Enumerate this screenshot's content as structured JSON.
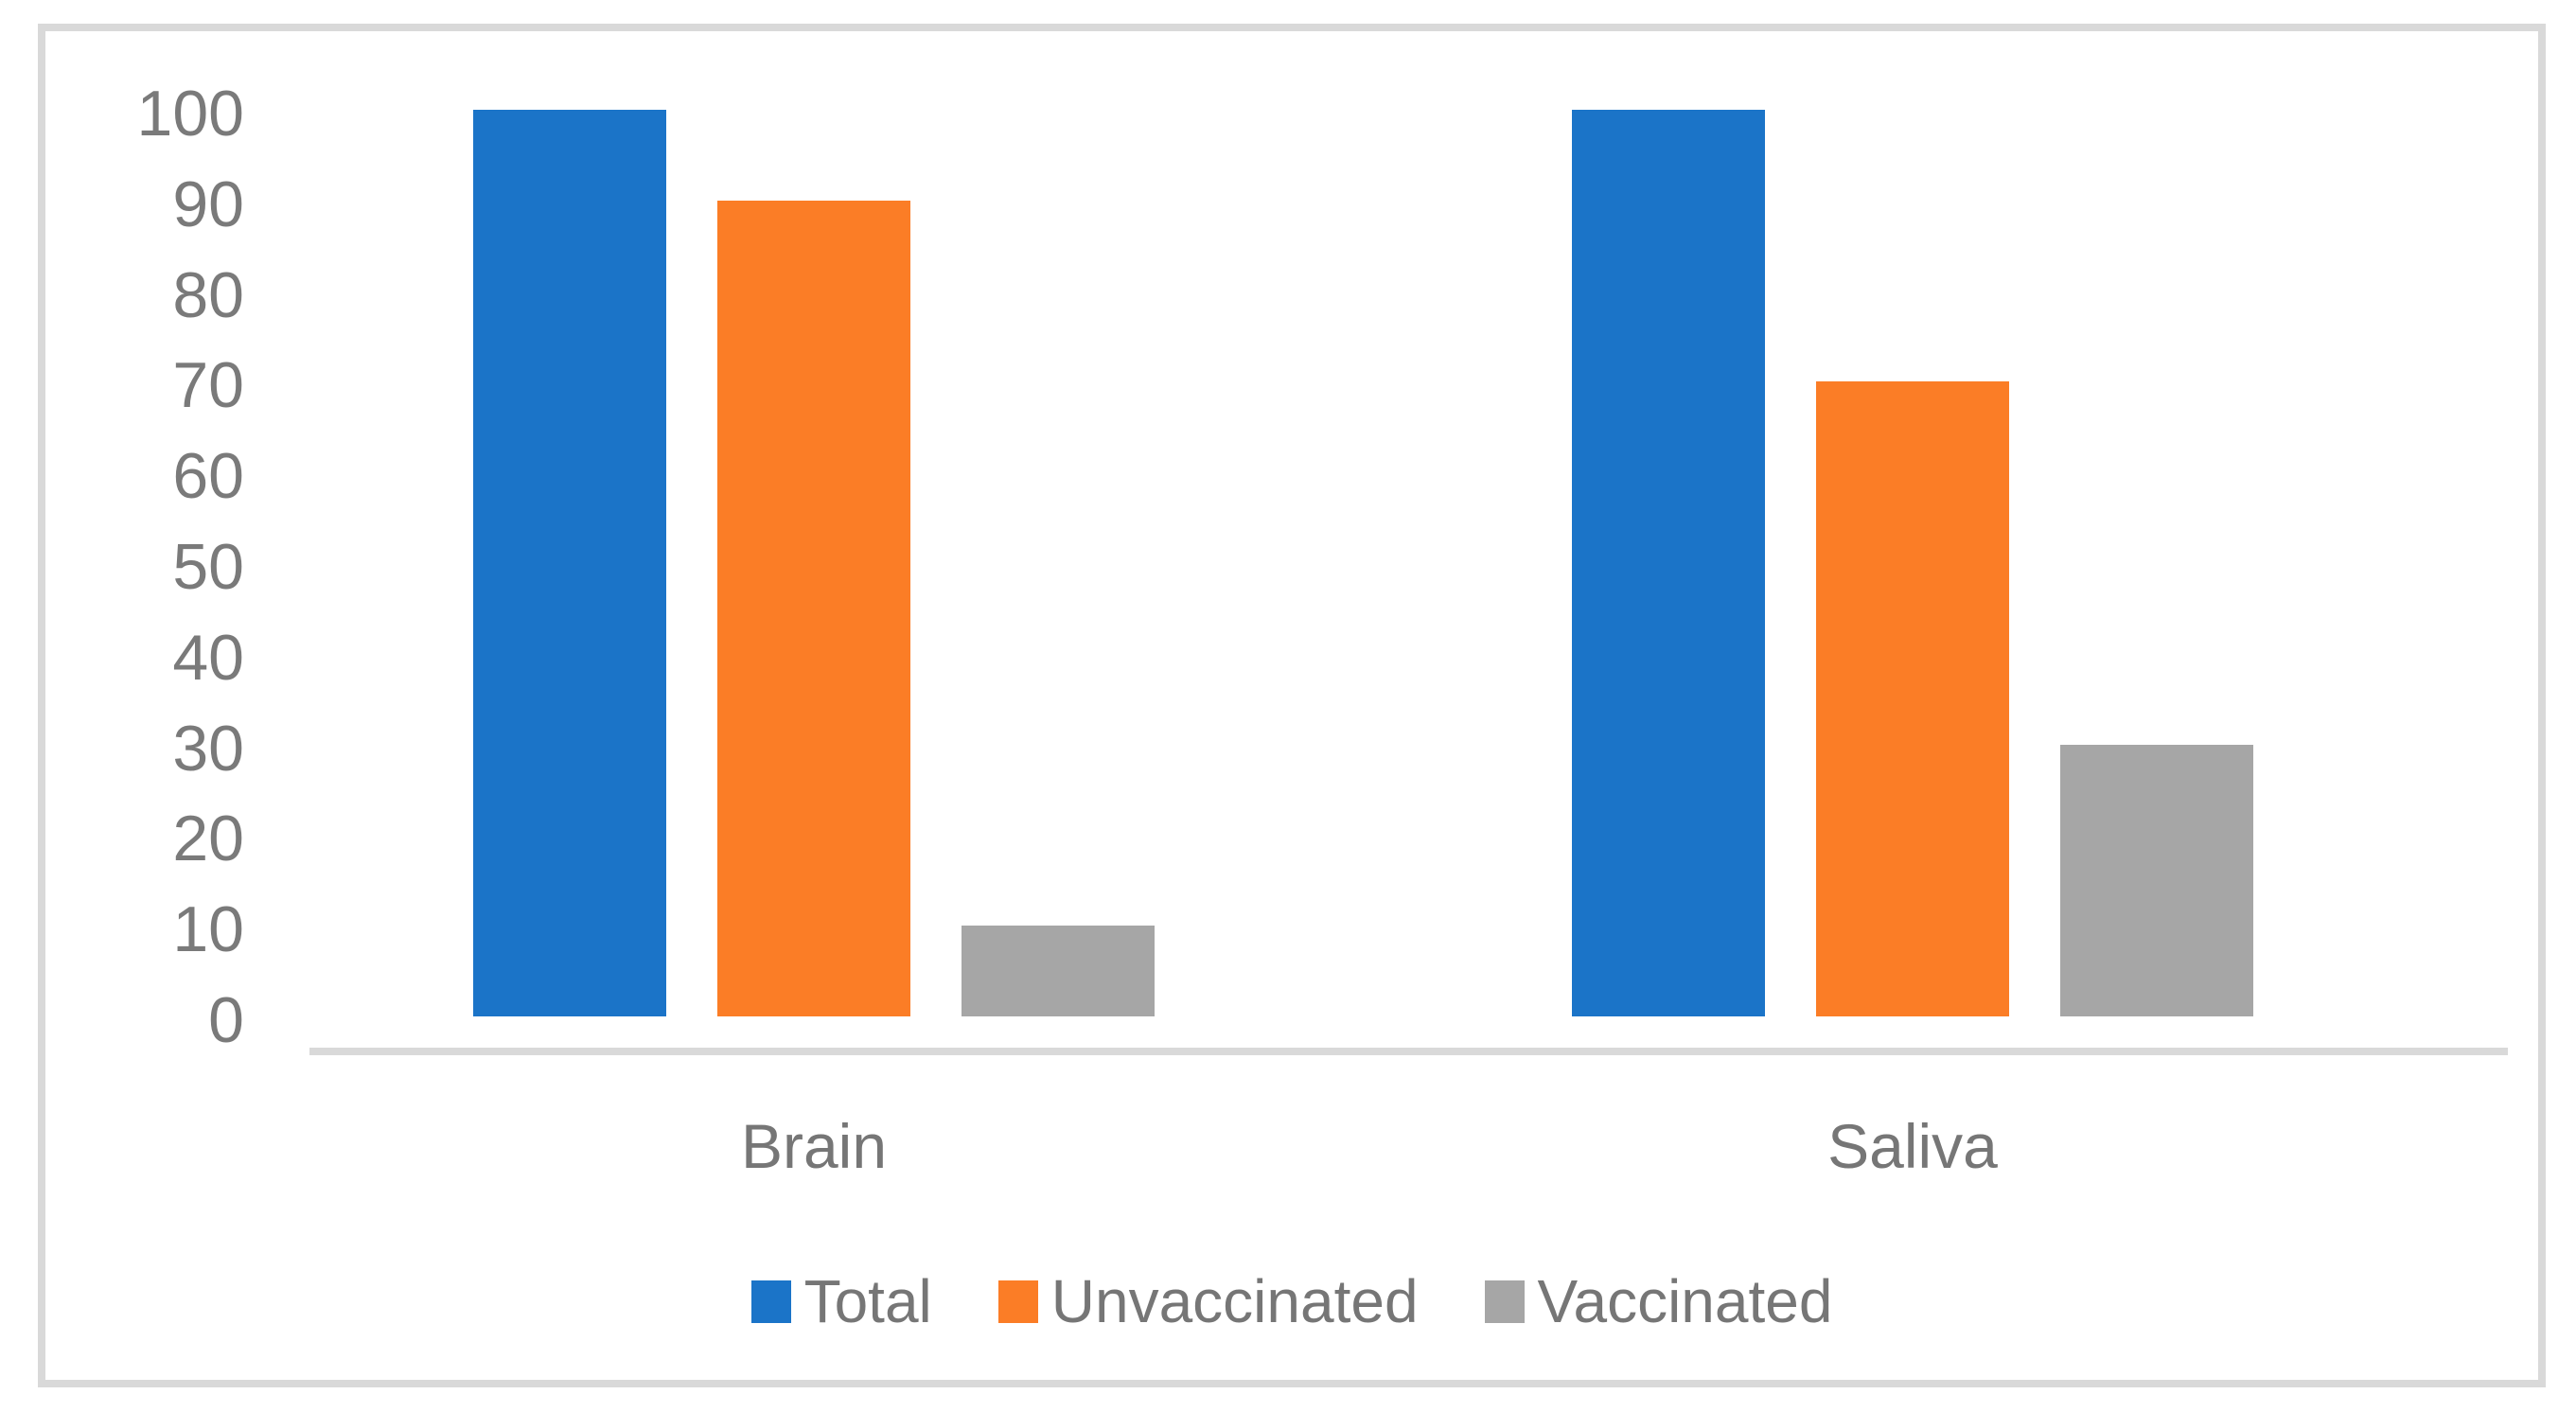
{
  "chart_data": {
    "type": "bar",
    "title": "",
    "xlabel": "",
    "ylabel": "",
    "categories": [
      "Brain",
      "Saliva"
    ],
    "series": [
      {
        "name": "Total",
        "color": "#1b74c8",
        "values": [
          100,
          100
        ]
      },
      {
        "name": "Unvaccinated",
        "color": "#fb7d26",
        "values": [
          90,
          70
        ]
      },
      {
        "name": "Vaccinated",
        "color": "#a6a6a6",
        "values": [
          10,
          30
        ]
      }
    ],
    "ylim": [
      0,
      100
    ],
    "yticks": [
      0,
      10,
      20,
      30,
      40,
      50,
      60,
      70,
      80,
      90,
      100
    ],
    "grid": "off",
    "legend_position": "bottom",
    "axis_line_color": "#d9d9d9",
    "frame_border_color": "#d9d9d9",
    "tick_label_color": "#7a7a7a",
    "category_label_color": "#767676",
    "legend_label_color": "#767676",
    "background_color": "#ffffff"
  }
}
